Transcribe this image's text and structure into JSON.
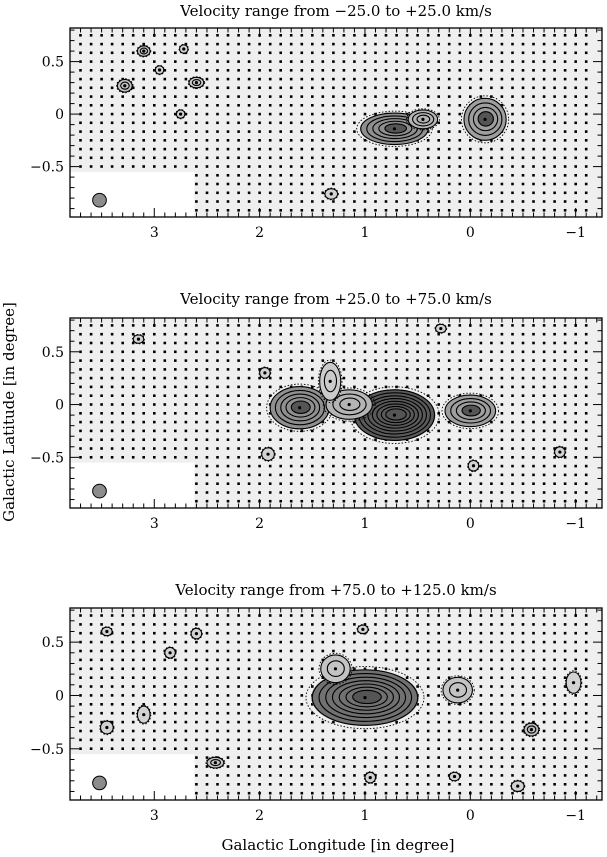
{
  "page": {
    "xlabel": "Galactic Longitude [in degree]",
    "ylabel": "Galactic Latitude [in degree]"
  },
  "chart_data": [
    {
      "type": "contour",
      "title": "Velocity range from −25.0 to +25.0 km/s",
      "xlim": [
        3.8,
        -1.25
      ],
      "ylim": [
        -0.98,
        0.82
      ],
      "xticks": [
        {
          "v": 3,
          "label": "3"
        },
        {
          "v": 2,
          "label": "2"
        },
        {
          "v": 1,
          "label": "1"
        },
        {
          "v": 0,
          "label": "0"
        },
        {
          "v": -1,
          "label": "−1"
        }
      ],
      "yticks": [
        {
          "v": 0.5,
          "label": "0.5"
        },
        {
          "v": 0,
          "label": "0"
        },
        {
          "v": -0.5,
          "label": "−0.5"
        }
      ],
      "beam": {
        "l": 3.52,
        "b": -0.82,
        "r": 0.065
      },
      "sources": [
        {
          "l": 0.72,
          "b": -0.14,
          "rx": 0.32,
          "ry": 0.15,
          "levels": 5,
          "peak": 0.55
        },
        {
          "l": 0.45,
          "b": -0.05,
          "rx": 0.14,
          "ry": 0.09,
          "levels": 3,
          "peak": 0.3
        },
        {
          "l": -0.14,
          "b": -0.05,
          "rx": 0.2,
          "ry": 0.2,
          "levels": 4,
          "peak": 0.45
        },
        {
          "l": 3.28,
          "b": 0.27,
          "rx": 0.07,
          "ry": 0.06,
          "levels": 2,
          "peak": 0.2
        },
        {
          "l": 3.1,
          "b": 0.6,
          "rx": 0.06,
          "ry": 0.05,
          "levels": 2,
          "peak": 0.2
        },
        {
          "l": 2.6,
          "b": 0.3,
          "rx": 0.07,
          "ry": 0.05,
          "levels": 2,
          "peak": 0.15
        },
        {
          "l": 2.75,
          "b": 0.0,
          "rx": 0.04,
          "ry": 0.04,
          "levels": 1,
          "peak": 0.1
        },
        {
          "l": 2.95,
          "b": 0.42,
          "rx": 0.04,
          "ry": 0.04,
          "levels": 1,
          "peak": 0.1
        },
        {
          "l": 1.32,
          "b": -0.76,
          "rx": 0.06,
          "ry": 0.05,
          "levels": 1,
          "peak": 0.1
        },
        {
          "l": 2.72,
          "b": 0.62,
          "rx": 0.04,
          "ry": 0.04,
          "levels": 1,
          "peak": 0.1
        }
      ]
    },
    {
      "type": "contour",
      "title": "Velocity range from +25.0 to +75.0 km/s",
      "xlim": [
        3.8,
        -1.25
      ],
      "ylim": [
        -0.98,
        0.82
      ],
      "xticks": [
        {
          "v": 3,
          "label": "3"
        },
        {
          "v": 2,
          "label": "2"
        },
        {
          "v": 1,
          "label": "1"
        },
        {
          "v": 0,
          "label": "0"
        },
        {
          "v": -1,
          "label": "−1"
        }
      ],
      "yticks": [
        {
          "v": 0.5,
          "label": "0.5"
        },
        {
          "v": 0,
          "label": "0"
        },
        {
          "v": -0.5,
          "label": "−0.5"
        }
      ],
      "beam": {
        "l": 3.52,
        "b": -0.82,
        "r": 0.065
      },
      "sources": [
        {
          "l": 0.72,
          "b": -0.1,
          "rx": 0.38,
          "ry": 0.24,
          "levels": 8,
          "peak": 0.9
        },
        {
          "l": 1.62,
          "b": -0.03,
          "rx": 0.28,
          "ry": 0.2,
          "levels": 5,
          "peak": 0.55
        },
        {
          "l": 1.15,
          "b": 0.0,
          "rx": 0.22,
          "ry": 0.14,
          "levels": 3,
          "peak": 0.3
        },
        {
          "l": 1.33,
          "b": 0.22,
          "rx": 0.1,
          "ry": 0.18,
          "levels": 2,
          "peak": 0.15
        },
        {
          "l": 0.0,
          "b": -0.06,
          "rx": 0.24,
          "ry": 0.15,
          "levels": 4,
          "peak": 0.45
        },
        {
          "l": 1.92,
          "b": -0.47,
          "rx": 0.06,
          "ry": 0.06,
          "levels": 1,
          "peak": 0.1
        },
        {
          "l": 1.95,
          "b": 0.3,
          "rx": 0.05,
          "ry": 0.05,
          "levels": 1,
          "peak": 0.1
        },
        {
          "l": 3.15,
          "b": 0.62,
          "rx": 0.05,
          "ry": 0.04,
          "levels": 1,
          "peak": 0.1
        },
        {
          "l": 0.28,
          "b": 0.72,
          "rx": 0.05,
          "ry": 0.04,
          "levels": 1,
          "peak": 0.1
        },
        {
          "l": -0.03,
          "b": -0.58,
          "rx": 0.05,
          "ry": 0.05,
          "levels": 1,
          "peak": 0.1
        },
        {
          "l": -0.85,
          "b": -0.45,
          "rx": 0.05,
          "ry": 0.05,
          "levels": 1,
          "peak": 0.1
        }
      ]
    },
    {
      "type": "contour",
      "title": "Velocity range from +75.0 to +125.0 km/s",
      "xlim": [
        3.8,
        -1.25
      ],
      "ylim": [
        -0.98,
        0.82
      ],
      "xticks": [
        {
          "v": 3,
          "label": "3"
        },
        {
          "v": 2,
          "label": "2"
        },
        {
          "v": 1,
          "label": "1"
        },
        {
          "v": 0,
          "label": "0"
        },
        {
          "v": -1,
          "label": "−1"
        }
      ],
      "yticks": [
        {
          "v": 0.5,
          "label": "0.5"
        },
        {
          "v": 0,
          "label": "0"
        },
        {
          "v": -0.5,
          "label": "−0.5"
        }
      ],
      "beam": {
        "l": 3.52,
        "b": -0.82,
        "r": 0.065
      },
      "sources": [
        {
          "l": 1.0,
          "b": -0.02,
          "rx": 0.5,
          "ry": 0.26,
          "levels": 7,
          "peak": 0.75
        },
        {
          "l": 1.28,
          "b": 0.25,
          "rx": 0.14,
          "ry": 0.13,
          "levels": 2,
          "peak": 0.2
        },
        {
          "l": 0.12,
          "b": 0.05,
          "rx": 0.14,
          "ry": 0.12,
          "levels": 2,
          "peak": 0.2
        },
        {
          "l": -0.58,
          "b": -0.32,
          "rx": 0.07,
          "ry": 0.06,
          "levels": 2,
          "peak": 0.25
        },
        {
          "l": 2.42,
          "b": -0.63,
          "rx": 0.08,
          "ry": 0.05,
          "levels": 2,
          "peak": 0.2
        },
        {
          "l": 3.45,
          "b": -0.3,
          "rx": 0.06,
          "ry": 0.06,
          "levels": 1,
          "peak": 0.1
        },
        {
          "l": 3.1,
          "b": -0.18,
          "rx": 0.06,
          "ry": 0.08,
          "levels": 1,
          "peak": 0.1
        },
        {
          "l": 3.45,
          "b": 0.6,
          "rx": 0.05,
          "ry": 0.04,
          "levels": 1,
          "peak": 0.1
        },
        {
          "l": 2.6,
          "b": 0.58,
          "rx": 0.05,
          "ry": 0.05,
          "levels": 1,
          "peak": 0.1
        },
        {
          "l": 2.85,
          "b": 0.4,
          "rx": 0.05,
          "ry": 0.05,
          "levels": 1,
          "peak": 0.1
        },
        {
          "l": 1.02,
          "b": 0.62,
          "rx": 0.05,
          "ry": 0.04,
          "levels": 1,
          "peak": 0.1
        },
        {
          "l": -0.98,
          "b": 0.12,
          "rx": 0.07,
          "ry": 0.1,
          "levels": 1,
          "peak": 0.1
        },
        {
          "l": 0.95,
          "b": -0.77,
          "rx": 0.05,
          "ry": 0.05,
          "levels": 1,
          "peak": 0.1
        },
        {
          "l": 0.15,
          "b": -0.76,
          "rx": 0.05,
          "ry": 0.04,
          "levels": 1,
          "peak": 0.1
        },
        {
          "l": -0.45,
          "b": -0.85,
          "rx": 0.06,
          "ry": 0.05,
          "levels": 1,
          "peak": 0.1
        }
      ]
    }
  ]
}
